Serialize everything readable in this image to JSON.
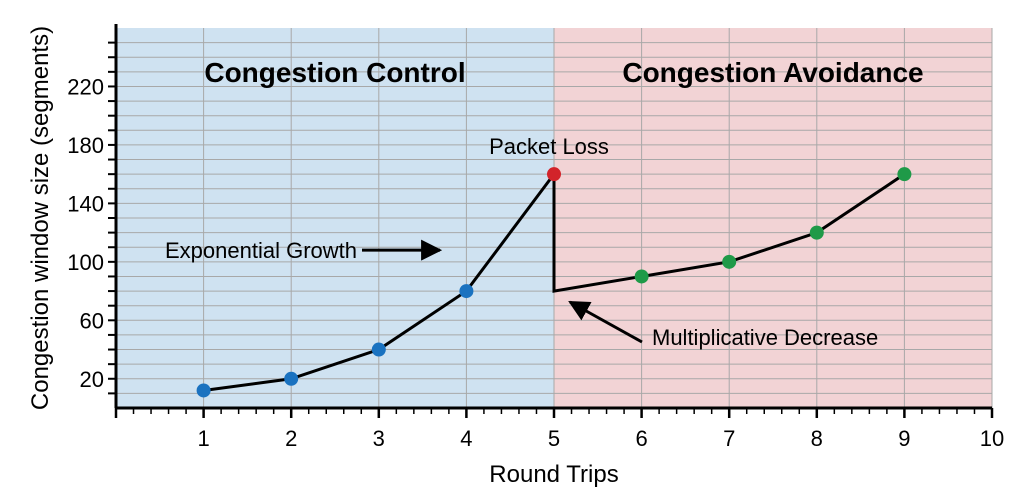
{
  "chart_data": {
    "type": "line",
    "xlabel": "Round Trips",
    "ylabel": "Congestion window size (segments)",
    "xlim": [
      0,
      10
    ],
    "ylim": [
      0,
      260
    ],
    "x_ticks": [
      1,
      2,
      3,
      4,
      5,
      6,
      7,
      8,
      9,
      10
    ],
    "y_tick_labels": [
      20,
      60,
      100,
      140,
      180,
      220
    ],
    "y_minor_step": 10,
    "grid": true,
    "regions": [
      {
        "label": "Congestion Control",
        "x_start": 0,
        "x_end": 5,
        "color": "#cfe2f1"
      },
      {
        "label": "Congestion Avoidance",
        "x_start": 5,
        "x_end": 10,
        "color": "#f2d3d5"
      }
    ],
    "line_path": [
      {
        "x": 1,
        "y": 12
      },
      {
        "x": 2,
        "y": 20
      },
      {
        "x": 3,
        "y": 40
      },
      {
        "x": 4,
        "y": 80
      },
      {
        "x": 5,
        "y": 160
      },
      {
        "x": 5,
        "y": 80
      },
      {
        "x": 6,
        "y": 90
      },
      {
        "x": 7,
        "y": 100
      },
      {
        "x": 8,
        "y": 120
      },
      {
        "x": 9,
        "y": 160
      }
    ],
    "points": [
      {
        "x": 1,
        "y": 12,
        "color": "#1a72c0"
      },
      {
        "x": 2,
        "y": 20,
        "color": "#1a72c0"
      },
      {
        "x": 3,
        "y": 40,
        "color": "#1a72c0"
      },
      {
        "x": 4,
        "y": 80,
        "color": "#1a72c0"
      },
      {
        "x": 5,
        "y": 160,
        "color": "#d2232a"
      },
      {
        "x": 6,
        "y": 90,
        "color": "#1f9a48"
      },
      {
        "x": 7,
        "y": 100,
        "color": "#1f9a48"
      },
      {
        "x": 8,
        "y": 120,
        "color": "#1f9a48"
      },
      {
        "x": 9,
        "y": 160,
        "color": "#1f9a48"
      }
    ],
    "annotations": {
      "packet_loss": {
        "text": "Packet Loss",
        "x": 5,
        "y": 160
      },
      "exponential_growth": {
        "text": "Exponential Growth",
        "x": 4.5,
        "y": 108
      },
      "multiplicative_decrease": {
        "text": "Multiplicative Decrease",
        "x": 5.2,
        "y": 70
      }
    }
  }
}
